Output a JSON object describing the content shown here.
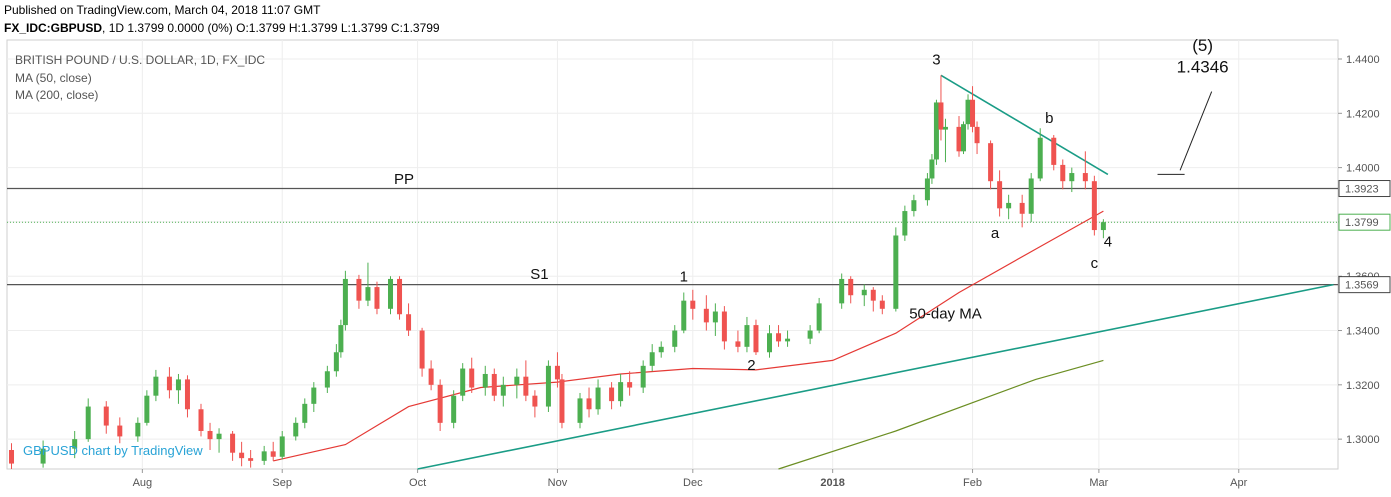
{
  "header": {
    "published": "Published on TradingView.com, March 04, 2018 11:07 GMT",
    "symbol": "FX_IDC:GBPUSD",
    "interval": "1D",
    "ohlc": "1.3799 0.0000 (0%) O:1.3799 H:1.3799 L:1.3799 C:1.3799"
  },
  "legend": {
    "title": "BRITISH POUND / U.S. DOLLAR, 1D, FX_IDC",
    "ma1": "MA (50, close)",
    "ma2": "MA (200, close)"
  },
  "watermark": "GBPUSD chart by TradingView",
  "colors": {
    "up": "#4caf50",
    "down": "#ef5350",
    "ma50": "#e53935",
    "ma200": "#6b8e23",
    "trendline": "#1a9c86",
    "level": "#555555",
    "price": "#4caf50"
  },
  "chart_data": {
    "type": "candlestick",
    "title": "BRITISH POUND / U.S. DOLLAR, 1D, FX_IDC",
    "x_labels": [
      "Aug",
      "Sep",
      "Oct",
      "Nov",
      "Dec",
      "2018",
      "Feb",
      "Mar",
      "Apr"
    ],
    "x_dates": [
      "2017-08-01",
      "2017-09-01",
      "2017-10-01",
      "2017-11-01",
      "2017-12-01",
      "2018-01-01",
      "2018-02-01",
      "2018-03-01",
      "2018-04-01"
    ],
    "y_ticks": [
      "1.3000",
      "1.3200",
      "1.3400",
      "1.3600",
      "1.3800",
      "1.4000",
      "1.4200",
      "1.4400"
    ],
    "ylim": [
      1.289,
      1.447
    ],
    "xlim": [
      "2017-07-02",
      "2018-04-23"
    ],
    "last_price": "1.3799",
    "levels": [
      {
        "name": "PP",
        "value": "1.3923"
      },
      {
        "name": "S1",
        "value": "1.3569"
      }
    ],
    "candles": [
      {
        "d": "2017-07-03",
        "o": 1.296,
        "h": 1.2985,
        "l": 1.289,
        "c": 1.291
      },
      {
        "d": "2017-07-10",
        "o": 1.291,
        "h": 1.2995,
        "l": 1.2895,
        "c": 1.2965
      },
      {
        "d": "2017-07-17",
        "o": 1.2965,
        "h": 1.303,
        "l": 1.293,
        "c": 1.3
      },
      {
        "d": "2017-07-20",
        "o": 1.3,
        "h": 1.315,
        "l": 1.299,
        "c": 1.312
      },
      {
        "d": "2017-07-24",
        "o": 1.312,
        "h": 1.314,
        "l": 1.302,
        "c": 1.305
      },
      {
        "d": "2017-07-27",
        "o": 1.305,
        "h": 1.308,
        "l": 1.2985,
        "c": 1.301
      },
      {
        "d": "2017-07-31",
        "o": 1.301,
        "h": 1.308,
        "l": 1.299,
        "c": 1.306
      },
      {
        "d": "2017-08-02",
        "o": 1.306,
        "h": 1.318,
        "l": 1.305,
        "c": 1.316
      },
      {
        "d": "2017-08-04",
        "o": 1.316,
        "h": 1.3255,
        "l": 1.314,
        "c": 1.323
      },
      {
        "d": "2017-08-07",
        "o": 1.323,
        "h": 1.3265,
        "l": 1.315,
        "c": 1.318
      },
      {
        "d": "2017-08-09",
        "o": 1.318,
        "h": 1.324,
        "l": 1.313,
        "c": 1.322
      },
      {
        "d": "2017-08-11",
        "o": 1.322,
        "h": 1.3235,
        "l": 1.308,
        "c": 1.311
      },
      {
        "d": "2017-08-14",
        "o": 1.311,
        "h": 1.313,
        "l": 1.301,
        "c": 1.303
      },
      {
        "d": "2017-08-16",
        "o": 1.303,
        "h": 1.306,
        "l": 1.296,
        "c": 1.3
      },
      {
        "d": "2017-08-18",
        "o": 1.3,
        "h": 1.304,
        "l": 1.295,
        "c": 1.302
      },
      {
        "d": "2017-08-21",
        "o": 1.302,
        "h": 1.303,
        "l": 1.292,
        "c": 1.295
      },
      {
        "d": "2017-08-23",
        "o": 1.295,
        "h": 1.299,
        "l": 1.29,
        "c": 1.293
      },
      {
        "d": "2017-08-25",
        "o": 1.293,
        "h": 1.296,
        "l": 1.2895,
        "c": 1.292
      },
      {
        "d": "2017-08-28",
        "o": 1.292,
        "h": 1.2975,
        "l": 1.2905,
        "c": 1.2955
      },
      {
        "d": "2017-08-30",
        "o": 1.2955,
        "h": 1.299,
        "l": 1.292,
        "c": 1.2935
      },
      {
        "d": "2017-09-01",
        "o": 1.2935,
        "h": 1.303,
        "l": 1.2925,
        "c": 1.301
      },
      {
        "d": "2017-09-04",
        "o": 1.301,
        "h": 1.308,
        "l": 1.2995,
        "c": 1.306
      },
      {
        "d": "2017-09-06",
        "o": 1.306,
        "h": 1.315,
        "l": 1.304,
        "c": 1.313
      },
      {
        "d": "2017-09-08",
        "o": 1.313,
        "h": 1.321,
        "l": 1.31,
        "c": 1.319
      },
      {
        "d": "2017-09-11",
        "o": 1.319,
        "h": 1.327,
        "l": 1.317,
        "c": 1.325
      },
      {
        "d": "2017-09-13",
        "o": 1.325,
        "h": 1.335,
        "l": 1.323,
        "c": 1.332
      },
      {
        "d": "2017-09-14",
        "o": 1.332,
        "h": 1.344,
        "l": 1.33,
        "c": 1.342
      },
      {
        "d": "2017-09-15",
        "o": 1.342,
        "h": 1.362,
        "l": 1.34,
        "c": 1.359
      },
      {
        "d": "2017-09-18",
        "o": 1.359,
        "h": 1.3605,
        "l": 1.348,
        "c": 1.351
      },
      {
        "d": "2017-09-20",
        "o": 1.351,
        "h": 1.365,
        "l": 1.349,
        "c": 1.356
      },
      {
        "d": "2017-09-22",
        "o": 1.356,
        "h": 1.358,
        "l": 1.346,
        "c": 1.348
      },
      {
        "d": "2017-09-25",
        "o": 1.348,
        "h": 1.36,
        "l": 1.346,
        "c": 1.359
      },
      {
        "d": "2017-09-27",
        "o": 1.359,
        "h": 1.36,
        "l": 1.344,
        "c": 1.346
      },
      {
        "d": "2017-09-29",
        "o": 1.346,
        "h": 1.35,
        "l": 1.338,
        "c": 1.34
      },
      {
        "d": "2017-10-02",
        "o": 1.34,
        "h": 1.341,
        "l": 1.323,
        "c": 1.326
      },
      {
        "d": "2017-10-04",
        "o": 1.326,
        "h": 1.329,
        "l": 1.318,
        "c": 1.32
      },
      {
        "d": "2017-10-06",
        "o": 1.32,
        "h": 1.322,
        "l": 1.303,
        "c": 1.306
      },
      {
        "d": "2017-10-09",
        "o": 1.306,
        "h": 1.318,
        "l": 1.304,
        "c": 1.316
      },
      {
        "d": "2017-10-11",
        "o": 1.316,
        "h": 1.328,
        "l": 1.314,
        "c": 1.326
      },
      {
        "d": "2017-10-13",
        "o": 1.326,
        "h": 1.33,
        "l": 1.317,
        "c": 1.319
      },
      {
        "d": "2017-10-16",
        "o": 1.319,
        "h": 1.327,
        "l": 1.316,
        "c": 1.324
      },
      {
        "d": "2017-10-18",
        "o": 1.324,
        "h": 1.326,
        "l": 1.314,
        "c": 1.316
      },
      {
        "d": "2017-10-20",
        "o": 1.316,
        "h": 1.323,
        "l": 1.312,
        "c": 1.32
      },
      {
        "d": "2017-10-23",
        "o": 1.32,
        "h": 1.326,
        "l": 1.315,
        "c": 1.323
      },
      {
        "d": "2017-10-25",
        "o": 1.323,
        "h": 1.329,
        "l": 1.314,
        "c": 1.316
      },
      {
        "d": "2017-10-27",
        "o": 1.316,
        "h": 1.318,
        "l": 1.308,
        "c": 1.312
      },
      {
        "d": "2017-10-30",
        "o": 1.312,
        "h": 1.329,
        "l": 1.31,
        "c": 1.327
      },
      {
        "d": "2017-11-01",
        "o": 1.327,
        "h": 1.332,
        "l": 1.319,
        "c": 1.322
      },
      {
        "d": "2017-11-02",
        "o": 1.322,
        "h": 1.324,
        "l": 1.304,
        "c": 1.306
      },
      {
        "d": "2017-11-06",
        "o": 1.306,
        "h": 1.317,
        "l": 1.304,
        "c": 1.315
      },
      {
        "d": "2017-11-08",
        "o": 1.315,
        "h": 1.319,
        "l": 1.308,
        "c": 1.311
      },
      {
        "d": "2017-11-10",
        "o": 1.311,
        "h": 1.322,
        "l": 1.309,
        "c": 1.319
      },
      {
        "d": "2017-11-13",
        "o": 1.319,
        "h": 1.321,
        "l": 1.311,
        "c": 1.314
      },
      {
        "d": "2017-11-15",
        "o": 1.314,
        "h": 1.324,
        "l": 1.312,
        "c": 1.321
      },
      {
        "d": "2017-11-17",
        "o": 1.321,
        "h": 1.325,
        "l": 1.316,
        "c": 1.319
      },
      {
        "d": "2017-11-20",
        "o": 1.319,
        "h": 1.329,
        "l": 1.317,
        "c": 1.327
      },
      {
        "d": "2017-11-22",
        "o": 1.327,
        "h": 1.335,
        "l": 1.325,
        "c": 1.332
      },
      {
        "d": "2017-11-24",
        "o": 1.332,
        "h": 1.336,
        "l": 1.33,
        "c": 1.334
      },
      {
        "d": "2017-11-27",
        "o": 1.334,
        "h": 1.342,
        "l": 1.332,
        "c": 1.34
      },
      {
        "d": "2017-11-29",
        "o": 1.34,
        "h": 1.354,
        "l": 1.339,
        "c": 1.351
      },
      {
        "d": "2017-12-01",
        "o": 1.351,
        "h": 1.355,
        "l": 1.344,
        "c": 1.348
      },
      {
        "d": "2017-12-04",
        "o": 1.348,
        "h": 1.353,
        "l": 1.34,
        "c": 1.343
      },
      {
        "d": "2017-12-06",
        "o": 1.343,
        "h": 1.35,
        "l": 1.338,
        "c": 1.347
      },
      {
        "d": "2017-12-08",
        "o": 1.347,
        "h": 1.349,
        "l": 1.333,
        "c": 1.336
      },
      {
        "d": "2017-12-11",
        "o": 1.336,
        "h": 1.34,
        "l": 1.332,
        "c": 1.334
      },
      {
        "d": "2017-12-13",
        "o": 1.334,
        "h": 1.345,
        "l": 1.332,
        "c": 1.342
      },
      {
        "d": "2017-12-15",
        "o": 1.342,
        "h": 1.344,
        "l": 1.331,
        "c": 1.332
      },
      {
        "d": "2017-12-18",
        "o": 1.332,
        "h": 1.342,
        "l": 1.33,
        "c": 1.339
      },
      {
        "d": "2017-12-20",
        "o": 1.339,
        "h": 1.342,
        "l": 1.334,
        "c": 1.336
      },
      {
        "d": "2017-12-22",
        "o": 1.336,
        "h": 1.34,
        "l": 1.334,
        "c": 1.337
      },
      {
        "d": "2017-12-27",
        "o": 1.337,
        "h": 1.342,
        "l": 1.335,
        "c": 1.34
      },
      {
        "d": "2017-12-29",
        "o": 1.34,
        "h": 1.352,
        "l": 1.339,
        "c": 1.35
      },
      {
        "d": "2018-01-03",
        "o": 1.35,
        "h": 1.361,
        "l": 1.348,
        "c": 1.359
      },
      {
        "d": "2018-01-05",
        "o": 1.359,
        "h": 1.36,
        "l": 1.35,
        "c": 1.353
      },
      {
        "d": "2018-01-08",
        "o": 1.353,
        "h": 1.357,
        "l": 1.349,
        "c": 1.355
      },
      {
        "d": "2018-01-10",
        "o": 1.355,
        "h": 1.356,
        "l": 1.347,
        "c": 1.351
      },
      {
        "d": "2018-01-12",
        "o": 1.351,
        "h": 1.353,
        "l": 1.346,
        "c": 1.348
      },
      {
        "d": "2018-01-15",
        "o": 1.348,
        "h": 1.378,
        "l": 1.347,
        "c": 1.375
      },
      {
        "d": "2018-01-17",
        "o": 1.375,
        "h": 1.386,
        "l": 1.373,
        "c": 1.384
      },
      {
        "d": "2018-01-19",
        "o": 1.384,
        "h": 1.39,
        "l": 1.382,
        "c": 1.388
      },
      {
        "d": "2018-01-22",
        "o": 1.388,
        "h": 1.398,
        "l": 1.386,
        "c": 1.396
      },
      {
        "d": "2018-01-23",
        "o": 1.396,
        "h": 1.405,
        "l": 1.394,
        "c": 1.403
      },
      {
        "d": "2018-01-24",
        "o": 1.403,
        "h": 1.425,
        "l": 1.401,
        "c": 1.424
      },
      {
        "d": "2018-01-25",
        "o": 1.424,
        "h": 1.434,
        "l": 1.41,
        "c": 1.414
      },
      {
        "d": "2018-01-26",
        "o": 1.414,
        "h": 1.418,
        "l": 1.402,
        "c": 1.415
      },
      {
        "d": "2018-01-29",
        "o": 1.415,
        "h": 1.419,
        "l": 1.404,
        "c": 1.406
      },
      {
        "d": "2018-01-30",
        "o": 1.406,
        "h": 1.417,
        "l": 1.405,
        "c": 1.416
      },
      {
        "d": "2018-01-31",
        "o": 1.416,
        "h": 1.427,
        "l": 1.414,
        "c": 1.425
      },
      {
        "d": "2018-02-01",
        "o": 1.425,
        "h": 1.43,
        "l": 1.413,
        "c": 1.415
      },
      {
        "d": "2018-02-02",
        "o": 1.415,
        "h": 1.417,
        "l": 1.405,
        "c": 1.409
      },
      {
        "d": "2018-02-05",
        "o": 1.409,
        "h": 1.41,
        "l": 1.392,
        "c": 1.395
      },
      {
        "d": "2018-02-07",
        "o": 1.395,
        "h": 1.399,
        "l": 1.382,
        "c": 1.385
      },
      {
        "d": "2018-02-09",
        "o": 1.385,
        "h": 1.39,
        "l": 1.381,
        "c": 1.387
      },
      {
        "d": "2018-02-12",
        "o": 1.387,
        "h": 1.39,
        "l": 1.378,
        "c": 1.383
      },
      {
        "d": "2018-02-14",
        "o": 1.383,
        "h": 1.398,
        "l": 1.38,
        "c": 1.396
      },
      {
        "d": "2018-02-16",
        "o": 1.396,
        "h": 1.4145,
        "l": 1.395,
        "c": 1.411
      },
      {
        "d": "2018-02-19",
        "o": 1.411,
        "h": 1.412,
        "l": 1.399,
        "c": 1.401
      },
      {
        "d": "2018-02-21",
        "o": 1.401,
        "h": 1.403,
        "l": 1.392,
        "c": 1.395
      },
      {
        "d": "2018-02-23",
        "o": 1.395,
        "h": 1.4,
        "l": 1.391,
        "c": 1.398
      },
      {
        "d": "2018-02-26",
        "o": 1.398,
        "h": 1.406,
        "l": 1.392,
        "c": 1.395
      },
      {
        "d": "2018-02-28",
        "o": 1.395,
        "h": 1.397,
        "l": 1.375,
        "c": 1.377
      },
      {
        "d": "2018-03-02",
        "o": 1.377,
        "h": 1.381,
        "l": 1.374,
        "c": 1.3799
      }
    ],
    "series": [
      {
        "name": "MA (50, close)",
        "points": [
          [
            "2017-08-30",
            1.292
          ],
          [
            "2017-09-15",
            1.298
          ],
          [
            "2017-09-29",
            1.312
          ],
          [
            "2017-10-15",
            1.319
          ],
          [
            "2017-11-01",
            1.321
          ],
          [
            "2017-11-15",
            1.324
          ],
          [
            "2017-12-01",
            1.326
          ],
          [
            "2017-12-15",
            1.3255
          ],
          [
            "2018-01-01",
            1.329
          ],
          [
            "2018-01-15",
            1.339
          ],
          [
            "2018-01-29",
            1.354
          ],
          [
            "2018-02-15",
            1.37
          ],
          [
            "2018-03-02",
            1.384
          ]
        ]
      },
      {
        "name": "MA (200, close)",
        "points": [
          [
            "2017-12-20",
            1.289
          ],
          [
            "2018-01-15",
            1.303
          ],
          [
            "2018-02-15",
            1.322
          ],
          [
            "2018-03-02",
            1.329
          ]
        ]
      }
    ],
    "trendlines": [
      {
        "from": [
          "2017-10-01",
          1.289
        ],
        "to": [
          "2018-04-22",
          1.3569
        ]
      },
      {
        "from": [
          "2018-01-25",
          1.434
        ],
        "to": [
          "2018-03-03",
          1.3975
        ]
      },
      {
        "from": [
          "2018-03-19",
          1.399
        ],
        "to": [
          "2018-03-26",
          1.428
        ]
      },
      {
        "from": [
          "2018-03-14",
          1.3975
        ],
        "to": [
          "2018-03-20",
          1.3975
        ]
      }
    ],
    "annotations": [
      {
        "text": "1",
        "x": "2017-11-29",
        "y": 1.358
      },
      {
        "text": "2",
        "x": "2017-12-14",
        "y": 1.3255
      },
      {
        "text": "3",
        "x": "2018-01-24",
        "y": 1.438
      },
      {
        "text": "a",
        "x": "2018-02-06",
        "y": 1.374
      },
      {
        "text": "b",
        "x": "2018-02-18",
        "y": 1.4165
      },
      {
        "text": "c",
        "x": "2018-02-28",
        "y": 1.363
      },
      {
        "text": "4",
        "x": "2018-03-03",
        "y": 1.371
      },
      {
        "text": "PP",
        "x": "2017-09-28",
        "y": 1.394
      },
      {
        "text": "S1",
        "x": "2017-10-28",
        "y": 1.359
      },
      {
        "text": "50-day MA",
        "x": "2018-01-26",
        "y": 1.3445
      },
      {
        "text": "(5)",
        "x": "2018-03-24",
        "y": 1.443
      },
      {
        "text": "1.4346",
        "x": "2018-03-24",
        "y": 1.435
      }
    ]
  }
}
